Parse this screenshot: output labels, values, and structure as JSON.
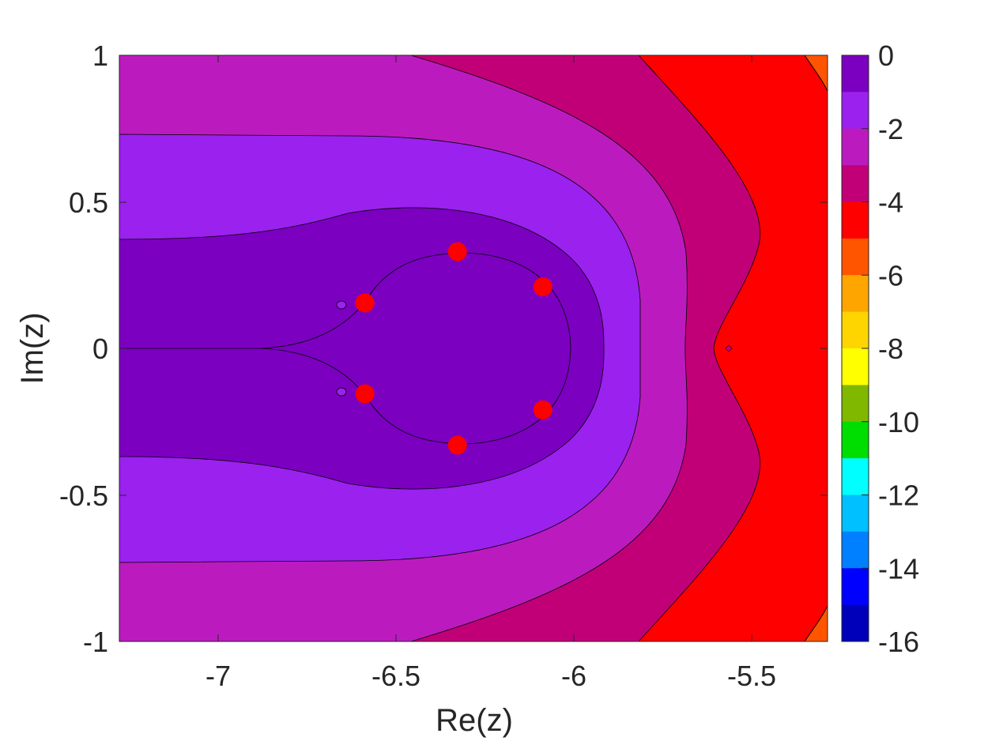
{
  "chart_data": {
    "type": "contour",
    "xlabel": "Re(z)",
    "ylabel": "Im(z)",
    "xlim": [
      -7.27,
      -5.28
    ],
    "ylim": [
      -1,
      1
    ],
    "x_ticks": [
      -7,
      -6.5,
      -6,
      -5.5
    ],
    "x_tick_labels": [
      "-7",
      "-6.5",
      "-6",
      "-5.5"
    ],
    "y_ticks": [
      -1,
      -0.5,
      0,
      0.5,
      1
    ],
    "y_tick_labels": [
      "-1",
      "-0.5",
      "0",
      "0.5",
      "1"
    ],
    "colorbar": {
      "range": [
        -16,
        0
      ],
      "ticks": [
        0,
        -2,
        -4,
        -6,
        -8,
        -10,
        -12,
        -14,
        -16
      ],
      "tick_labels": [
        "0",
        "-2",
        "-4",
        "-6",
        "-8",
        "-10",
        "-12",
        "-14",
        "-16"
      ],
      "levels": [
        {
          "from": -1,
          "to": 0,
          "color": "#7B00C0"
        },
        {
          "from": -2,
          "to": -1,
          "color": "#9B21EE"
        },
        {
          "from": -3,
          "to": -2,
          "color": "#BB1BBE"
        },
        {
          "from": -4,
          "to": -3,
          "color": "#C10078"
        },
        {
          "from": -5,
          "to": -4,
          "color": "#FF0000"
        },
        {
          "from": -6,
          "to": -5,
          "color": "#FF5500"
        },
        {
          "from": -7,
          "to": -6,
          "color": "#FFA500"
        },
        {
          "from": -8,
          "to": -7,
          "color": "#FFD500"
        },
        {
          "from": -9,
          "to": -8,
          "color": "#FFFF00"
        },
        {
          "from": -10,
          "to": -9,
          "color": "#80B800"
        },
        {
          "from": -11,
          "to": -10,
          "color": "#00DD00"
        },
        {
          "from": -12,
          "to": -11,
          "color": "#00FFFF"
        },
        {
          "from": -13,
          "to": -12,
          "color": "#00C0FF"
        },
        {
          "from": -14,
          "to": -13,
          "color": "#0080FF"
        },
        {
          "from": -15,
          "to": -14,
          "color": "#0000FF"
        },
        {
          "from": -16,
          "to": -15,
          "color": "#0000BB"
        }
      ]
    },
    "points": {
      "color": "#FF0000",
      "x": [
        -6.32,
        -6.08,
        -6.08,
        -6.32,
        -6.58,
        -6.58
      ],
      "y": [
        0.33,
        0.21,
        -0.21,
        -0.33,
        -0.155,
        0.155
      ]
    },
    "grid": false
  }
}
